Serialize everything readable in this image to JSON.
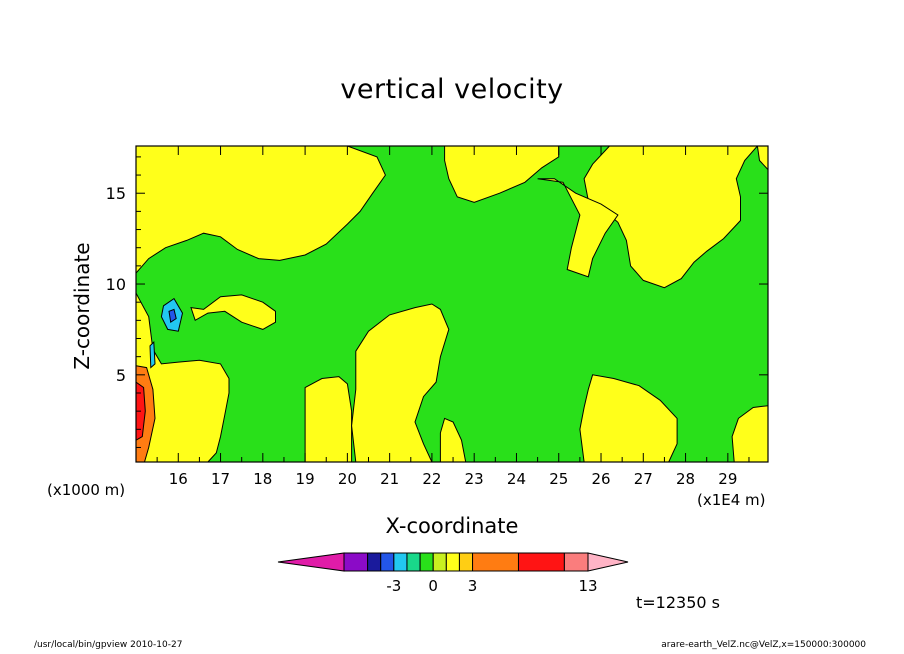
{
  "chart_data": {
    "type": "heatmap",
    "title": "vertical velocity",
    "xlabel": "X-coordinate",
    "ylabel": "Z-coordinate",
    "x_unit": "(x1E4 m)",
    "y_unit": "(x1000 m)",
    "xlim": [
      15.0,
      29.95
    ],
    "ylim": [
      0.2,
      17.6
    ],
    "x_ticks": [
      16,
      17,
      18,
      19,
      20,
      21,
      22,
      23,
      24,
      25,
      26,
      27,
      28,
      29
    ],
    "y_ticks": [
      5,
      10,
      15
    ],
    "colorbar": {
      "labels": [
        {
          "value": -3,
          "text": "-3"
        },
        {
          "value": 0,
          "text": "0"
        },
        {
          "value": 3,
          "text": "3"
        },
        {
          "value": 13,
          "text": "13"
        }
      ],
      "levels": [
        {
          "from": null,
          "to": -8,
          "color": "#e01ca8"
        },
        {
          "from": -8,
          "to": -5,
          "color": "#8b0bc7"
        },
        {
          "from": -5,
          "to": -4,
          "color": "#1a1a9c"
        },
        {
          "from": -4,
          "to": -3,
          "color": "#2356e8"
        },
        {
          "from": -3,
          "to": -2,
          "color": "#22c8f0"
        },
        {
          "from": -2,
          "to": -1,
          "color": "#19d88a"
        },
        {
          "from": -1,
          "to": 0,
          "color": "#29e01a"
        },
        {
          "from": 0,
          "to": 1,
          "color": "#c8f020"
        },
        {
          "from": 1,
          "to": 2,
          "color": "#ffff1a"
        },
        {
          "from": 2,
          "to": 3,
          "color": "#ffce14"
        },
        {
          "from": 3,
          "to": 7,
          "color": "#ff7c12"
        },
        {
          "from": 7,
          "to": 11,
          "color": "#ff1414"
        },
        {
          "from": 11,
          "to": 13,
          "color": "#fa7d7d"
        },
        {
          "from": 13,
          "to": null,
          "color": "#ffb4c6"
        }
      ]
    },
    "field_colors": {
      "positive": "#ffff1a",
      "negative": "#29e01a"
    },
    "regions_positive": [
      {
        "name": "upper-left",
        "points": [
          [
            15.0,
            17.6
          ],
          [
            20.0,
            17.6
          ],
          [
            20.7,
            17.0
          ],
          [
            20.9,
            16.0
          ],
          [
            20.6,
            15.0
          ],
          [
            20.3,
            14.0
          ],
          [
            20.0,
            13.3
          ],
          [
            19.5,
            12.2
          ],
          [
            19.0,
            11.6
          ],
          [
            18.4,
            11.3
          ],
          [
            17.9,
            11.4
          ],
          [
            17.4,
            11.9
          ],
          [
            17.0,
            12.6
          ],
          [
            16.6,
            12.8
          ],
          [
            16.2,
            12.4
          ],
          [
            15.7,
            12.0
          ],
          [
            15.3,
            11.4
          ],
          [
            15.0,
            10.6
          ]
        ]
      },
      {
        "name": "upper-center",
        "points": [
          [
            22.3,
            17.6
          ],
          [
            25.0,
            17.6
          ],
          [
            25.0,
            17.0
          ],
          [
            24.6,
            16.4
          ],
          [
            24.2,
            15.6
          ],
          [
            23.6,
            15.0
          ],
          [
            23.0,
            14.5
          ],
          [
            22.6,
            14.8
          ],
          [
            22.4,
            15.8
          ],
          [
            22.3,
            16.8
          ]
        ]
      },
      {
        "name": "upper-right",
        "points": [
          [
            26.2,
            17.6
          ],
          [
            29.7,
            17.6
          ],
          [
            29.4,
            16.8
          ],
          [
            29.2,
            15.8
          ],
          [
            29.3,
            14.8
          ],
          [
            29.3,
            13.5
          ],
          [
            28.9,
            12.5
          ],
          [
            28.5,
            11.8
          ],
          [
            28.2,
            11.2
          ],
          [
            27.9,
            10.3
          ],
          [
            27.5,
            9.8
          ],
          [
            27.0,
            10.2
          ],
          [
            26.7,
            11.0
          ],
          [
            26.6,
            12.4
          ],
          [
            26.4,
            13.4
          ],
          [
            26.0,
            14.2
          ],
          [
            25.7,
            14.6
          ],
          [
            25.6,
            15.8
          ],
          [
            25.8,
            16.6
          ]
        ]
      },
      {
        "name": "upper-mid-tongue",
        "points": [
          [
            24.5,
            15.8
          ],
          [
            25.1,
            15.6
          ],
          [
            25.5,
            13.8
          ],
          [
            25.3,
            12.0
          ],
          [
            25.2,
            10.8
          ],
          [
            25.7,
            10.4
          ],
          [
            25.8,
            11.4
          ],
          [
            26.1,
            12.8
          ],
          [
            26.4,
            13.8
          ],
          [
            26.0,
            14.4
          ],
          [
            25.4,
            15.0
          ],
          [
            24.9,
            15.8
          ]
        ]
      },
      {
        "name": "left-low",
        "points": [
          [
            15.0,
            9.5
          ],
          [
            15.3,
            8.2
          ],
          [
            15.4,
            6.4
          ],
          [
            15.6,
            5.6
          ],
          [
            16.0,
            5.7
          ],
          [
            16.5,
            5.8
          ],
          [
            17.0,
            5.6
          ],
          [
            17.2,
            4.8
          ],
          [
            17.2,
            4.0
          ],
          [
            17.1,
            2.8
          ],
          [
            17.0,
            1.6
          ],
          [
            16.9,
            0.7
          ],
          [
            16.7,
            0.2
          ],
          [
            15.0,
            0.2
          ]
        ]
      },
      {
        "name": "left-mid-band",
        "points": [
          [
            16.3,
            8.7
          ],
          [
            16.6,
            8.6
          ],
          [
            17.0,
            9.3
          ],
          [
            17.5,
            9.4
          ],
          [
            18.0,
            9.0
          ],
          [
            18.3,
            8.5
          ],
          [
            18.3,
            7.9
          ],
          [
            18.0,
            7.5
          ],
          [
            17.5,
            7.9
          ],
          [
            17.1,
            8.5
          ],
          [
            16.7,
            8.4
          ],
          [
            16.4,
            8.0
          ]
        ]
      },
      {
        "name": "center-19-20",
        "points": [
          [
            19.0,
            0.2
          ],
          [
            20.1,
            0.2
          ],
          [
            20.1,
            1.5
          ],
          [
            20.1,
            3.0
          ],
          [
            20.0,
            4.5
          ],
          [
            19.8,
            4.9
          ],
          [
            19.4,
            4.8
          ],
          [
            19.0,
            4.3
          ],
          [
            19.0,
            3.0
          ],
          [
            19.0,
            1.6
          ]
        ]
      },
      {
        "name": "center-21-22",
        "points": [
          [
            20.2,
            0.2
          ],
          [
            22.0,
            0.2
          ],
          [
            21.8,
            1.2
          ],
          [
            21.6,
            2.4
          ],
          [
            21.8,
            3.8
          ],
          [
            22.1,
            4.6
          ],
          [
            22.2,
            6.0
          ],
          [
            22.4,
            7.5
          ],
          [
            22.2,
            8.6
          ],
          [
            22.0,
            8.9
          ],
          [
            21.6,
            8.7
          ],
          [
            21.0,
            8.3
          ],
          [
            20.5,
            7.4
          ],
          [
            20.2,
            6.3
          ],
          [
            20.2,
            4.2
          ],
          [
            20.1,
            2.2
          ]
        ]
      },
      {
        "name": "center-22-23",
        "points": [
          [
            22.2,
            0.2
          ],
          [
            22.8,
            0.2
          ],
          [
            22.7,
            1.4
          ],
          [
            22.5,
            2.4
          ],
          [
            22.3,
            2.6
          ],
          [
            22.2,
            1.8
          ]
        ]
      },
      {
        "name": "right-25-27",
        "points": [
          [
            25.6,
            0.2
          ],
          [
            26.5,
            0.2
          ],
          [
            27.6,
            0.2
          ],
          [
            27.8,
            1.2
          ],
          [
            27.8,
            2.6
          ],
          [
            27.4,
            3.6
          ],
          [
            26.9,
            4.4
          ],
          [
            26.3,
            4.8
          ],
          [
            25.8,
            5.0
          ],
          [
            25.7,
            4.2
          ],
          [
            25.6,
            3.2
          ],
          [
            25.5,
            2.0
          ]
        ]
      },
      {
        "name": "right-edge-low",
        "points": [
          [
            29.15,
            0.2
          ],
          [
            29.95,
            0.2
          ],
          [
            29.95,
            3.3
          ],
          [
            29.6,
            3.2
          ],
          [
            29.25,
            2.6
          ],
          [
            29.1,
            1.6
          ]
        ]
      },
      {
        "name": "right-edge-high",
        "points": [
          [
            29.7,
            17.6
          ],
          [
            29.95,
            17.6
          ],
          [
            29.95,
            16.3
          ],
          [
            29.75,
            16.8
          ]
        ]
      }
    ],
    "regions_updraft_core": [
      {
        "name": "core-orange",
        "color": "#ff7c12",
        "points": [
          [
            15.0,
            5.5
          ],
          [
            15.25,
            5.4
          ],
          [
            15.4,
            4.2
          ],
          [
            15.45,
            2.6
          ],
          [
            15.3,
            1.0
          ],
          [
            15.2,
            0.2
          ],
          [
            15.0,
            0.2
          ]
        ]
      },
      {
        "name": "core-red",
        "color": "#ff1414",
        "points": [
          [
            15.0,
            4.6
          ],
          [
            15.18,
            4.3
          ],
          [
            15.22,
            3.0
          ],
          [
            15.15,
            1.6
          ],
          [
            15.0,
            1.4
          ]
        ]
      }
    ],
    "regions_negative": [
      {
        "name": "downdraft-cyan",
        "color": "#22c8f0",
        "points": [
          [
            15.65,
            8.8
          ],
          [
            15.9,
            9.2
          ],
          [
            16.1,
            8.4
          ],
          [
            16.0,
            7.4
          ],
          [
            15.75,
            7.5
          ],
          [
            15.6,
            8.2
          ]
        ]
      },
      {
        "name": "downdraft-blue",
        "color": "#2356e8",
        "points": [
          [
            15.78,
            8.5
          ],
          [
            15.9,
            8.6
          ],
          [
            15.95,
            8.1
          ],
          [
            15.82,
            7.9
          ]
        ]
      },
      {
        "name": "downdraft-low",
        "color": "#22c8f0",
        "points": [
          [
            15.33,
            6.6
          ],
          [
            15.42,
            6.8
          ],
          [
            15.45,
            5.6
          ],
          [
            15.35,
            5.4
          ]
        ]
      }
    ]
  },
  "annotations": {
    "time": "t=12350 s",
    "footer_left": "/usr/local/bin/gpview  2010-10-27",
    "footer_right": "arare-earth_VelZ.nc@VelZ,x=150000:300000"
  }
}
